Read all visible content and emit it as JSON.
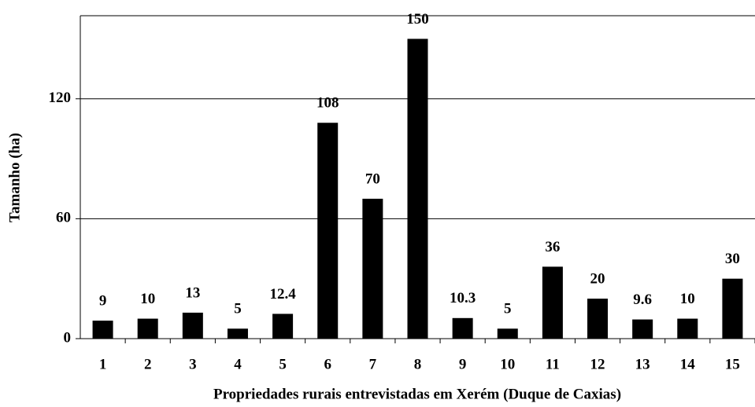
{
  "chart_data": {
    "type": "bar",
    "x_label": "Propriedades rurais entrevistadas em Xerém (Duque de Caxias)",
    "y_label": "Tamanho (ha)",
    "categories": [
      "1",
      "2",
      "3",
      "4",
      "5",
      "6",
      "7",
      "8",
      "9",
      "10",
      "11",
      "12",
      "13",
      "14",
      "15"
    ],
    "values": [
      9,
      10,
      13,
      5,
      12.4,
      108,
      70,
      150,
      10.3,
      5,
      36,
      20,
      9.6,
      10,
      30
    ],
    "color": "#000000",
    "ylim": [
      0,
      160
    ],
    "yticks": [
      0,
      60,
      120
    ],
    "grid": true
  }
}
